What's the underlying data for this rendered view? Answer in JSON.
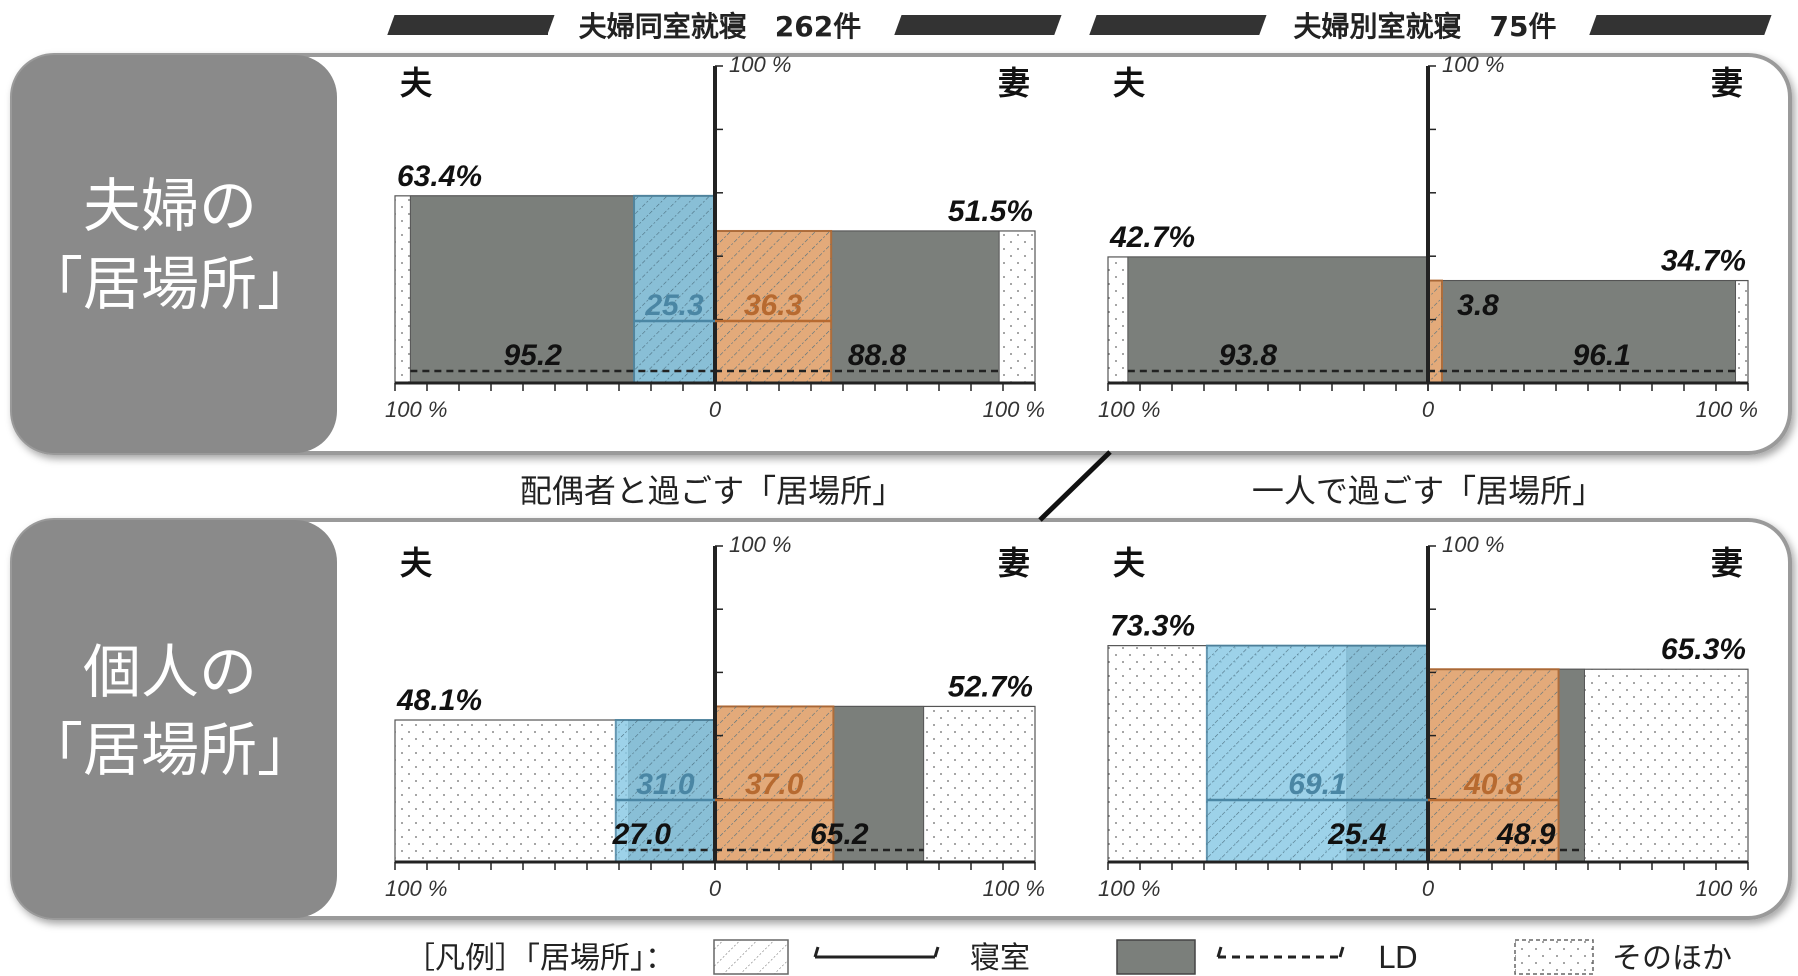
{
  "headers": {
    "shared": "夫婦同室就寝　262件",
    "separate": "夫婦別室就寝　75件"
  },
  "row_titles": {
    "row1": [
      "夫婦の",
      "「居場所」"
    ],
    "row2": [
      "個人の",
      "「居場所」"
    ]
  },
  "mid_labels": {
    "with_spouse": "配偶者と過ごす「居場所」",
    "alone": "一人で過ごす「居場所」"
  },
  "axis_labels": {
    "husband": "夫",
    "wife": "妻",
    "hundred": "100 %",
    "zero": "0",
    "top": "100 %"
  },
  "legend": {
    "prefix": "［凡例］「居場所」：",
    "bedroom": "寝室",
    "ld": "LD",
    "other": "そのほか"
  },
  "colors": {
    "gray": "#7b7f7b",
    "blue": "#8ccbe6",
    "blue_dark": "#4a86a4",
    "orange": "#f6b27a",
    "orange_dark": "#b76a30",
    "panel_bg": "#8a8a8a"
  },
  "chart_data": [
    {
      "type": "bar",
      "title": "夫婦の「居場所」 — 夫婦同室就寝",
      "husband": {
        "total": 63.4,
        "ld": 95.2,
        "bedroom": 25.3
      },
      "wife": {
        "total": 51.5,
        "ld": 88.8,
        "bedroom": 36.3
      },
      "labels": {
        "h_total": "63.4",
        "w_total": "51.5",
        "h_ld": "95.2",
        "w_ld": "88.8",
        "h_bed": "25.3",
        "w_bed": "36.3"
      }
    },
    {
      "type": "bar",
      "title": "夫婦の「居場所」 — 夫婦別室就寝",
      "husband": {
        "total": 42.7,
        "ld": 93.8,
        "bedroom": 0
      },
      "wife": {
        "total": 34.7,
        "ld": 96.1,
        "bedroom": 3.8
      },
      "labels": {
        "h_total": "42.7",
        "w_total": "34.7",
        "h_ld": "93.8",
        "w_ld": "96.1",
        "w_bed": "3.8"
      }
    },
    {
      "type": "bar",
      "title": "個人の「居場所」 — 夫婦同室就寝",
      "husband": {
        "total": 48.1,
        "ld": 27.0,
        "bedroom": 31.0
      },
      "wife": {
        "total": 52.7,
        "ld": 65.2,
        "bedroom": 37.0
      },
      "labels": {
        "h_total": "48.1",
        "w_total": "52.7",
        "h_ld": "27.0",
        "w_ld": "65.2",
        "h_bed": "31.0",
        "w_bed": "37.0"
      }
    },
    {
      "type": "bar",
      "title": "個人の「居場所」 — 夫婦別室就寝",
      "husband": {
        "total": 73.3,
        "ld": 25.4,
        "bedroom": 69.1
      },
      "wife": {
        "total": 65.3,
        "ld": 48.9,
        "bedroom": 40.8
      },
      "labels": {
        "h_total": "73.3",
        "w_total": "65.3",
        "h_ld": "25.4",
        "w_ld": "48.9",
        "h_bed": "69.1",
        "w_bed": "40.8"
      }
    }
  ]
}
